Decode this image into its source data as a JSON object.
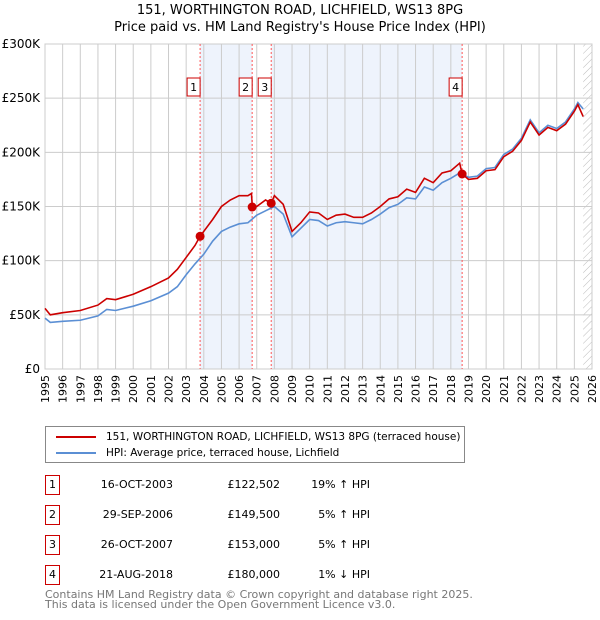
{
  "chart_data": {
    "type": "line",
    "title": "151, WORTHINGTON ROAD, LICHFIELD, WS13 8PG",
    "subtitle": "Price paid vs. HM Land Registry's House Price Index (HPI)",
    "xlim": [
      1995,
      2026
    ],
    "ylim": [
      0,
      300000
    ],
    "yticks": [
      {
        "v": 0,
        "label": "£0"
      },
      {
        "v": 50000,
        "label": "£50K"
      },
      {
        "v": 100000,
        "label": "£100K"
      },
      {
        "v": 150000,
        "label": "£150K"
      },
      {
        "v": 200000,
        "label": "£200K"
      },
      {
        "v": 250000,
        "label": "£250K"
      },
      {
        "v": 300000,
        "label": "£300K"
      }
    ],
    "xticks": [
      "1995",
      "1996",
      "1997",
      "1998",
      "1999",
      "2000",
      "2001",
      "2002",
      "2003",
      "2004",
      "2005",
      "2006",
      "2007",
      "2008",
      "2009",
      "2010",
      "2011",
      "2012",
      "2013",
      "2014",
      "2015",
      "2016",
      "2017",
      "2018",
      "2019",
      "2020",
      "2021",
      "2022",
      "2023",
      "2024",
      "2025",
      "2026"
    ],
    "grid": true,
    "series": [
      {
        "name": "151, WORTHINGTON ROAD, LICHFIELD, WS13 8PG (terraced house)",
        "color": "#cc0000",
        "x": [
          1995,
          1995.3,
          1996,
          1997,
          1998,
          1998.5,
          1999,
          2000,
          2001,
          2002,
          2002.5,
          2003,
          2003.5,
          2003.79,
          2004.5,
          2005,
          2005.5,
          2006,
          2006.5,
          2006.7,
          2006.75,
          2007,
          2007.5,
          2007.82,
          2008,
          2008.5,
          2009,
          2009.5,
          2010,
          2010.5,
          2011,
          2011.5,
          2012,
          2012.5,
          2013,
          2013.5,
          2014,
          2014.5,
          2015,
          2015.5,
          2016,
          2016.5,
          2017,
          2017.5,
          2018,
          2018.5,
          2018.64,
          2019,
          2019.5,
          2020,
          2020.5,
          2021,
          2021.5,
          2022,
          2022.5,
          2023,
          2023.5,
          2024,
          2024.5,
          2025,
          2025.2,
          2025.5
        ],
        "y": [
          56000,
          50000,
          52000,
          54000,
          59000,
          65000,
          64000,
          69000,
          76000,
          84000,
          92000,
          103000,
          114000,
          122502,
          138000,
          150000,
          156000,
          160000,
          160000,
          162000,
          149500,
          150000,
          156000,
          153000,
          160000,
          152000,
          127000,
          135000,
          145000,
          144000,
          138000,
          142000,
          143000,
          140000,
          140000,
          144000,
          150000,
          157000,
          159000,
          166000,
          163000,
          176000,
          172000,
          181000,
          183000,
          190000,
          180000,
          175000,
          176000,
          183000,
          184000,
          196000,
          201000,
          211000,
          228000,
          216000,
          223000,
          220000,
          226000,
          238000,
          244000,
          233000
        ]
      },
      {
        "name": "HPI: Average price, terraced house, Lichfield",
        "color": "#5b8fd4",
        "x": [
          1995,
          1995.3,
          1996,
          1997,
          1998,
          1998.5,
          1999,
          2000,
          2001,
          2002,
          2002.5,
          2003,
          2003.5,
          2004,
          2004.5,
          2005,
          2005.5,
          2006,
          2006.5,
          2007,
          2007.5,
          2008,
          2008.5,
          2009,
          2009.5,
          2010,
          2010.5,
          2011,
          2011.5,
          2012,
          2012.5,
          2013,
          2013.5,
          2014,
          2014.5,
          2015,
          2015.5,
          2016,
          2016.5,
          2017,
          2017.5,
          2018,
          2018.5,
          2019,
          2019.5,
          2020,
          2020.5,
          2021,
          2021.5,
          2022,
          2022.5,
          2023,
          2023.5,
          2024,
          2024.5,
          2025,
          2025.2,
          2025.5
        ],
        "y": [
          47000,
          43000,
          44000,
          45000,
          49000,
          55000,
          54000,
          58000,
          63000,
          70000,
          76000,
          87000,
          97000,
          106000,
          118000,
          127000,
          131000,
          134000,
          135000,
          142000,
          146000,
          150000,
          143000,
          122000,
          130000,
          138000,
          137000,
          132000,
          135000,
          136000,
          135000,
          134000,
          138000,
          143000,
          149000,
          152000,
          158000,
          157000,
          168000,
          165000,
          172000,
          176000,
          181000,
          177000,
          178000,
          185000,
          186000,
          198000,
          203000,
          213000,
          230000,
          218000,
          225000,
          222000,
          228000,
          240000,
          246000,
          240000
        ]
      }
    ],
    "sales": [
      {
        "n": "1",
        "x": 2003.79,
        "y": 122502,
        "date": "16-OCT-2003",
        "price": "£122,502",
        "hpi": "19% ↑ HPI"
      },
      {
        "n": "2",
        "x": 2006.74,
        "y": 149500,
        "date": "29-SEP-2006",
        "price": "£149,500",
        "hpi": "5% ↑ HPI"
      },
      {
        "n": "3",
        "x": 2007.82,
        "y": 153000,
        "date": "26-OCT-2007",
        "price": "£153,000",
        "hpi": "5% ↑ HPI"
      },
      {
        "n": "4",
        "x": 2018.64,
        "y": 180000,
        "date": "21-AUG-2018",
        "price": "£180,000",
        "hpi": "1% ↓ HPI"
      }
    ],
    "shaded": [
      [
        2003.79,
        2006.74
      ],
      [
        2007.82,
        2018.64
      ]
    ],
    "forecast_start": 2025.5,
    "legend_position": "bottom"
  },
  "footer": {
    "line1": "Contains HM Land Registry data © Crown copyright and database right 2025.",
    "line2": "This data is licensed under the Open Government Licence v3.0."
  }
}
